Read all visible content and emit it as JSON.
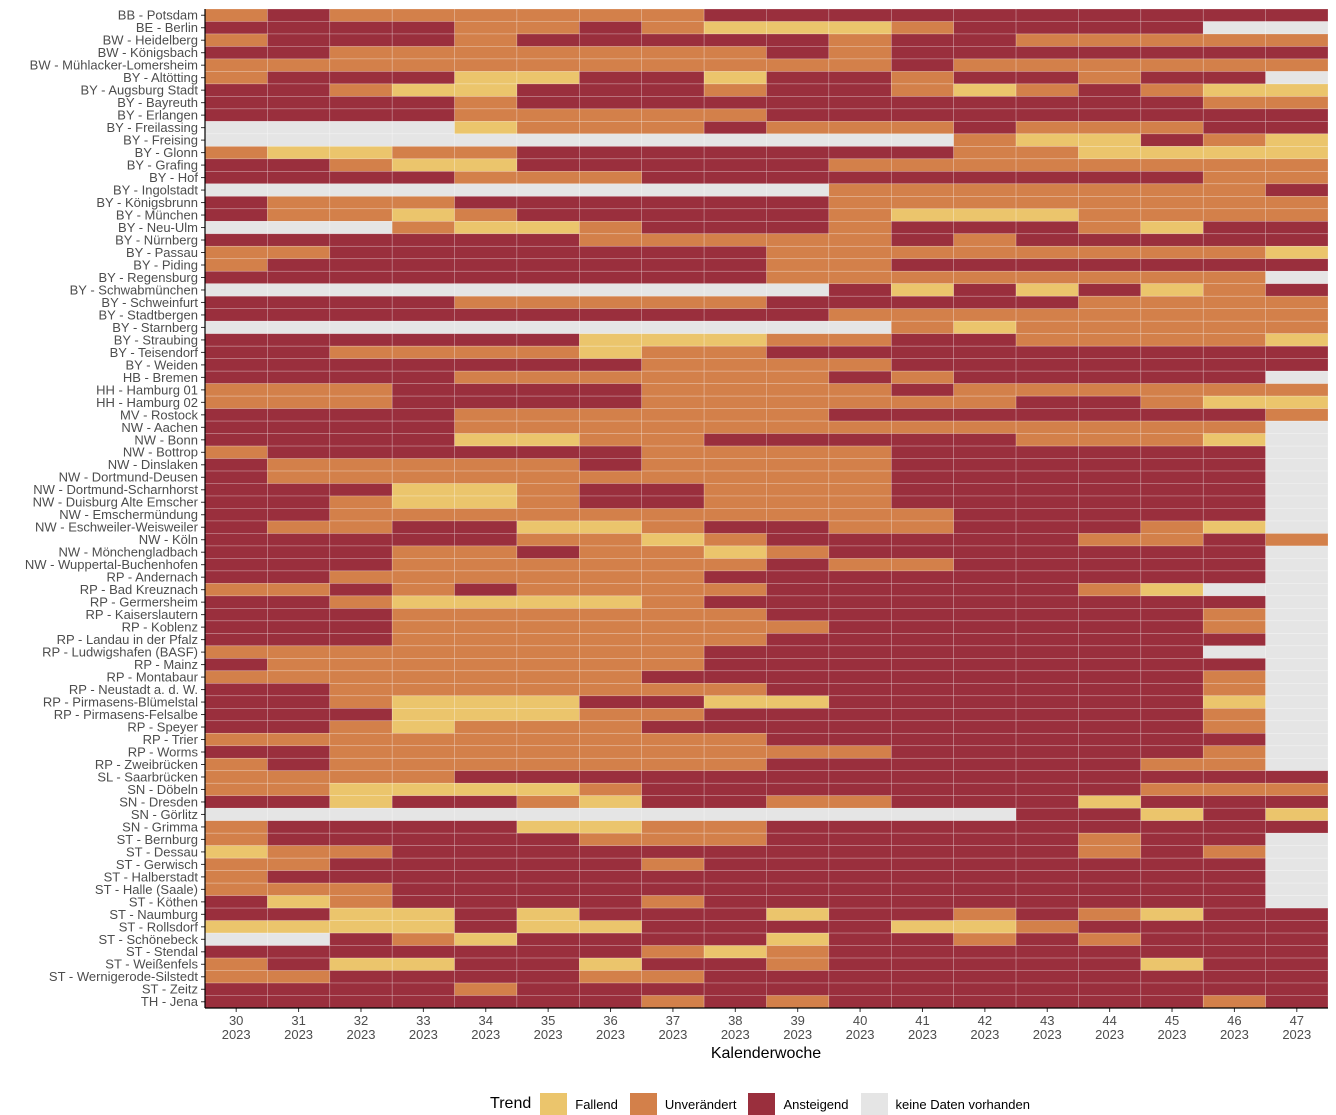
{
  "chart_data": {
    "type": "heatmap",
    "x_label": "Kalenderwoche",
    "categories": [
      "30\n2023",
      "31\n2023",
      "32\n2023",
      "33\n2023",
      "34\n2023",
      "35\n2023",
      "36\n2023",
      "37\n2023",
      "38\n2023",
      "39\n2023",
      "40\n2023",
      "41\n2023",
      "42\n2023",
      "43\n2023",
      "44\n2023",
      "45\n2023",
      "46\n2023",
      "47\n2023"
    ],
    "rows": [
      "BB - Potsdam",
      "BE - Berlin",
      "BW - Heidelberg",
      "BW - Königsbach",
      "BW - Mühlacker-Lomersheim",
      "BY - Altötting",
      "BY - Augsburg Stadt",
      "BY - Bayreuth",
      "BY - Erlangen",
      "BY - Freilassing",
      "BY - Freising",
      "BY - Glonn",
      "BY - Grafing",
      "BY - Hof",
      "BY - Ingolstadt",
      "BY - Königsbrunn",
      "BY - München",
      "BY - Neu-Ulm",
      "BY - Nürnberg",
      "BY - Passau",
      "BY - Piding",
      "BY - Regensburg",
      "BY - Schwabmünchen",
      "BY - Schweinfurt",
      "BY - Stadtbergen",
      "BY - Starnberg",
      "BY - Straubing",
      "BY - Teisendorf",
      "BY - Weiden",
      "HB - Bremen",
      "HH - Hamburg 01",
      "HH - Hamburg 02",
      "MV - Rostock",
      "NW - Aachen",
      "NW - Bonn",
      "NW - Bottrop",
      "NW - Dinslaken",
      "NW - Dortmund-Deusen",
      "NW - Dortmund-Scharnhorst",
      "NW - Duisburg Alte Emscher",
      "NW - Emschermündung",
      "NW - Eschweiler-Weisweiler",
      "NW - Köln",
      "NW - Mönchengladbach",
      "NW - Wuppertal-Buchenhofen",
      "RP - Andernach",
      "RP - Bad Kreuznach",
      "RP - Germersheim",
      "RP - Kaiserslautern",
      "RP - Koblenz",
      "RP - Landau in der Pfalz",
      "RP - Ludwigshafen (BASF)",
      "RP - Mainz",
      "RP - Montabaur",
      "RP - Neustadt a. d. W.",
      "RP - Pirmasens-Blümelstal",
      "RP - Pirmasens-Felsalbe",
      "RP - Speyer",
      "RP - Trier",
      "RP - Worms",
      "RP - Zweibrücken",
      "SL - Saarbrücken",
      "SN - Döbeln",
      "SN - Dresden",
      "SN - Görlitz",
      "SN - Grimma",
      "ST - Bernburg",
      "ST - Dessau",
      "ST - Gerwisch",
      "ST - Halberstadt",
      "ST - Halle (Saale)",
      "ST - Köthen",
      "ST - Naumburg",
      "ST - Rollsdorf",
      "ST - Schönebeck",
      "ST - Stendal",
      "ST - Weißenfels",
      "ST - Wernigerode-Silstedt",
      "ST - Zeitz",
      "TH - Jena"
    ],
    "legend": {
      "title": "Trend",
      "items": [
        {
          "name": "Fallend",
          "color": "#ebc56c"
        },
        {
          "name": "Unverändert",
          "color": "#d3804a"
        },
        {
          "name": "Ansteigend",
          "color": "#9a2f3d"
        },
        {
          "name": "keine Daten vorhanden",
          "color": "#e5e5e5"
        }
      ]
    },
    "values": [
      [
        1,
        2,
        1,
        1,
        1,
        1,
        1,
        1,
        2,
        2,
        2,
        2,
        2,
        2,
        2,
        2,
        2,
        2
      ],
      [
        2,
        2,
        2,
        2,
        1,
        1,
        2,
        1,
        0,
        0,
        0,
        1,
        2,
        2,
        2,
        2,
        3,
        3
      ],
      [
        1,
        2,
        2,
        2,
        1,
        2,
        2,
        2,
        2,
        2,
        1,
        2,
        2,
        1,
        1,
        1,
        1,
        1
      ],
      [
        2,
        2,
        1,
        1,
        1,
        1,
        1,
        1,
        1,
        2,
        1,
        2,
        2,
        2,
        2,
        2,
        2,
        2
      ],
      [
        1,
        1,
        1,
        1,
        1,
        1,
        1,
        1,
        1,
        1,
        1,
        2,
        1,
        1,
        1,
        1,
        1,
        1
      ],
      [
        1,
        2,
        2,
        2,
        0,
        0,
        2,
        2,
        0,
        2,
        2,
        1,
        2,
        2,
        1,
        2,
        2,
        3
      ],
      [
        2,
        2,
        1,
        0,
        0,
        2,
        2,
        2,
        1,
        2,
        2,
        1,
        0,
        1,
        2,
        1,
        0,
        0
      ],
      [
        2,
        2,
        2,
        2,
        1,
        2,
        2,
        2,
        2,
        2,
        2,
        2,
        2,
        2,
        2,
        2,
        1,
        1
      ],
      [
        2,
        2,
        2,
        2,
        1,
        1,
        1,
        1,
        1,
        2,
        2,
        2,
        2,
        2,
        2,
        2,
        2,
        2
      ],
      [
        3,
        3,
        3,
        3,
        0,
        1,
        1,
        1,
        2,
        1,
        1,
        1,
        2,
        1,
        1,
        1,
        2,
        2
      ],
      [
        3,
        3,
        3,
        3,
        3,
        3,
        3,
        3,
        3,
        3,
        3,
        3,
        1,
        0,
        0,
        2,
        1,
        0
      ],
      [
        1,
        0,
        0,
        1,
        1,
        2,
        2,
        2,
        2,
        2,
        2,
        2,
        1,
        1,
        0,
        0,
        0,
        0
      ],
      [
        2,
        2,
        1,
        0,
        0,
        2,
        2,
        2,
        2,
        2,
        1,
        1,
        1,
        1,
        1,
        1,
        1,
        1
      ],
      [
        2,
        2,
        2,
        2,
        1,
        1,
        1,
        2,
        2,
        2,
        2,
        2,
        2,
        2,
        2,
        2,
        1,
        1
      ],
      [
        3,
        3,
        3,
        3,
        3,
        3,
        3,
        3,
        3,
        3,
        1,
        1,
        1,
        1,
        1,
        1,
        1,
        2
      ],
      [
        2,
        1,
        1,
        1,
        2,
        2,
        2,
        2,
        2,
        2,
        1,
        1,
        1,
        1,
        1,
        1,
        1,
        1
      ],
      [
        2,
        1,
        1,
        0,
        1,
        2,
        2,
        2,
        2,
        2,
        1,
        0,
        0,
        0,
        1,
        1,
        1,
        1
      ],
      [
        3,
        3,
        3,
        1,
        0,
        0,
        1,
        2,
        2,
        2,
        1,
        2,
        2,
        2,
        1,
        0,
        2,
        2
      ],
      [
        2,
        2,
        2,
        2,
        2,
        2,
        1,
        1,
        1,
        1,
        1,
        2,
        1,
        2,
        2,
        2,
        2,
        2
      ],
      [
        1,
        1,
        2,
        2,
        2,
        2,
        2,
        2,
        2,
        1,
        1,
        1,
        1,
        1,
        1,
        1,
        1,
        0
      ],
      [
        1,
        2,
        2,
        2,
        2,
        2,
        2,
        2,
        2,
        1,
        1,
        2,
        2,
        2,
        2,
        2,
        2,
        2
      ],
      [
        2,
        2,
        2,
        2,
        2,
        2,
        2,
        2,
        2,
        1,
        1,
        1,
        1,
        1,
        1,
        1,
        1,
        3
      ],
      [
        3,
        3,
        3,
        3,
        3,
        3,
        3,
        3,
        3,
        3,
        2,
        0,
        2,
        0,
        2,
        0,
        1,
        2
      ],
      [
        2,
        2,
        2,
        2,
        1,
        1,
        1,
        1,
        1,
        2,
        2,
        2,
        2,
        2,
        1,
        1,
        1,
        1
      ],
      [
        2,
        2,
        2,
        2,
        2,
        2,
        2,
        2,
        2,
        2,
        1,
        1,
        1,
        1,
        1,
        1,
        1,
        1
      ],
      [
        3,
        3,
        3,
        3,
        3,
        3,
        3,
        3,
        3,
        3,
        3,
        1,
        0,
        1,
        1,
        1,
        1,
        1
      ],
      [
        2,
        2,
        2,
        2,
        2,
        2,
        0,
        0,
        0,
        1,
        1,
        2,
        2,
        1,
        1,
        1,
        1,
        0
      ],
      [
        2,
        2,
        1,
        1,
        1,
        1,
        0,
        1,
        1,
        2,
        2,
        2,
        2,
        2,
        2,
        2,
        2,
        2
      ],
      [
        2,
        2,
        2,
        2,
        2,
        2,
        2,
        1,
        1,
        1,
        1,
        2,
        2,
        2,
        2,
        2,
        2,
        2
      ],
      [
        2,
        2,
        2,
        2,
        1,
        1,
        1,
        1,
        1,
        1,
        2,
        1,
        2,
        2,
        2,
        2,
        2,
        3
      ],
      [
        1,
        1,
        1,
        2,
        2,
        2,
        2,
        1,
        1,
        1,
        1,
        2,
        1,
        1,
        1,
        1,
        1,
        1
      ],
      [
        1,
        1,
        1,
        2,
        2,
        2,
        2,
        1,
        1,
        1,
        1,
        1,
        1,
        2,
        2,
        1,
        0,
        0
      ],
      [
        2,
        2,
        2,
        2,
        1,
        1,
        1,
        1,
        1,
        1,
        2,
        2,
        2,
        2,
        2,
        2,
        2,
        1
      ],
      [
        2,
        2,
        2,
        2,
        1,
        1,
        1,
        1,
        1,
        1,
        1,
        1,
        1,
        1,
        1,
        1,
        1,
        3
      ],
      [
        2,
        2,
        2,
        2,
        0,
        0,
        1,
        1,
        2,
        2,
        2,
        2,
        2,
        1,
        1,
        1,
        0,
        3
      ],
      [
        1,
        2,
        2,
        2,
        2,
        2,
        2,
        1,
        1,
        1,
        1,
        2,
        2,
        2,
        2,
        2,
        2,
        3
      ],
      [
        2,
        1,
        1,
        1,
        1,
        1,
        2,
        1,
        1,
        1,
        1,
        2,
        2,
        2,
        2,
        2,
        2,
        3
      ],
      [
        2,
        1,
        1,
        1,
        1,
        1,
        1,
        1,
        1,
        1,
        1,
        2,
        2,
        2,
        2,
        2,
        2,
        3
      ],
      [
        2,
        2,
        2,
        0,
        0,
        1,
        2,
        2,
        1,
        1,
        1,
        2,
        2,
        2,
        2,
        2,
        2,
        3
      ],
      [
        2,
        2,
        1,
        0,
        0,
        1,
        2,
        2,
        1,
        1,
        1,
        2,
        2,
        2,
        2,
        2,
        2,
        3
      ],
      [
        2,
        2,
        1,
        1,
        1,
        1,
        1,
        1,
        1,
        1,
        1,
        1,
        2,
        2,
        2,
        2,
        2,
        3
      ],
      [
        2,
        1,
        1,
        2,
        2,
        0,
        0,
        1,
        2,
        2,
        1,
        1,
        2,
        2,
        2,
        1,
        0,
        3
      ],
      [
        2,
        2,
        2,
        2,
        2,
        1,
        1,
        0,
        1,
        2,
        2,
        2,
        2,
        2,
        1,
        1,
        2,
        1
      ],
      [
        2,
        2,
        2,
        1,
        1,
        2,
        1,
        1,
        0,
        1,
        2,
        2,
        2,
        2,
        2,
        2,
        2,
        3
      ],
      [
        2,
        2,
        2,
        1,
        1,
        1,
        1,
        1,
        1,
        2,
        1,
        1,
        2,
        2,
        2,
        2,
        2,
        3
      ],
      [
        2,
        2,
        1,
        1,
        1,
        1,
        1,
        1,
        2,
        2,
        2,
        2,
        2,
        2,
        2,
        2,
        2,
        3
      ],
      [
        1,
        1,
        2,
        1,
        2,
        1,
        1,
        1,
        1,
        2,
        2,
        2,
        2,
        2,
        1,
        0,
        3,
        3
      ],
      [
        2,
        2,
        1,
        0,
        0,
        0,
        0,
        1,
        2,
        2,
        2,
        2,
        2,
        2,
        2,
        2,
        2,
        3
      ],
      [
        2,
        2,
        2,
        1,
        1,
        1,
        1,
        1,
        1,
        2,
        2,
        2,
        2,
        2,
        2,
        2,
        1,
        3
      ],
      [
        2,
        2,
        2,
        1,
        1,
        1,
        1,
        1,
        1,
        1,
        2,
        2,
        2,
        2,
        2,
        2,
        1,
        3
      ],
      [
        2,
        2,
        2,
        1,
        1,
        1,
        1,
        1,
        1,
        2,
        2,
        2,
        2,
        2,
        2,
        2,
        2,
        3
      ],
      [
        1,
        1,
        1,
        1,
        1,
        1,
        1,
        1,
        2,
        2,
        2,
        2,
        2,
        2,
        2,
        2,
        3,
        3
      ],
      [
        2,
        1,
        1,
        1,
        1,
        1,
        1,
        1,
        2,
        2,
        2,
        2,
        2,
        2,
        2,
        2,
        2,
        3
      ],
      [
        1,
        1,
        1,
        1,
        1,
        1,
        1,
        2,
        2,
        2,
        2,
        2,
        2,
        2,
        2,
        2,
        1,
        3
      ],
      [
        2,
        2,
        1,
        1,
        1,
        1,
        1,
        1,
        1,
        2,
        2,
        2,
        2,
        2,
        2,
        2,
        1,
        3
      ],
      [
        2,
        2,
        1,
        0,
        0,
        0,
        2,
        2,
        0,
        0,
        2,
        2,
        2,
        2,
        2,
        2,
        0,
        3
      ],
      [
        2,
        2,
        2,
        0,
        0,
        0,
        1,
        1,
        2,
        2,
        2,
        2,
        2,
        2,
        2,
        2,
        1,
        3
      ],
      [
        2,
        2,
        1,
        0,
        1,
        1,
        1,
        2,
        2,
        2,
        2,
        2,
        2,
        2,
        2,
        2,
        1,
        3
      ],
      [
        1,
        1,
        1,
        1,
        1,
        1,
        1,
        1,
        1,
        2,
        2,
        2,
        2,
        2,
        2,
        2,
        2,
        3
      ],
      [
        2,
        2,
        1,
        1,
        1,
        1,
        1,
        1,
        1,
        1,
        1,
        2,
        2,
        2,
        2,
        2,
        1,
        3
      ],
      [
        1,
        2,
        1,
        1,
        1,
        1,
        1,
        1,
        1,
        2,
        2,
        2,
        2,
        2,
        2,
        1,
        1,
        3
      ],
      [
        1,
        1,
        1,
        1,
        2,
        2,
        2,
        2,
        2,
        2,
        2,
        2,
        2,
        2,
        2,
        2,
        2,
        2
      ],
      [
        1,
        1,
        0,
        0,
        0,
        0,
        1,
        2,
        2,
        2,
        2,
        2,
        2,
        2,
        2,
        1,
        1,
        1
      ],
      [
        2,
        2,
        0,
        2,
        2,
        1,
        0,
        2,
        2,
        1,
        1,
        2,
        2,
        2,
        0,
        2,
        2,
        2
      ],
      [
        3,
        3,
        3,
        3,
        3,
        3,
        3,
        3,
        3,
        3,
        3,
        3,
        3,
        2,
        2,
        0,
        2,
        0
      ],
      [
        1,
        2,
        2,
        2,
        2,
        0,
        0,
        1,
        1,
        2,
        2,
        2,
        2,
        2,
        2,
        2,
        2,
        2
      ],
      [
        1,
        2,
        2,
        2,
        2,
        2,
        1,
        1,
        1,
        2,
        2,
        2,
        2,
        2,
        1,
        2,
        2,
        3
      ],
      [
        0,
        1,
        1,
        2,
        2,
        2,
        2,
        2,
        2,
        2,
        2,
        2,
        2,
        2,
        1,
        2,
        1,
        3
      ],
      [
        1,
        1,
        2,
        2,
        2,
        2,
        2,
        1,
        2,
        2,
        2,
        2,
        2,
        2,
        2,
        2,
        2,
        3
      ],
      [
        1,
        2,
        2,
        2,
        2,
        2,
        2,
        2,
        2,
        2,
        2,
        2,
        2,
        2,
        2,
        2,
        2,
        3
      ],
      [
        1,
        1,
        1,
        2,
        2,
        2,
        2,
        2,
        2,
        2,
        2,
        2,
        2,
        2,
        2,
        2,
        2,
        3
      ],
      [
        2,
        0,
        1,
        2,
        2,
        2,
        2,
        1,
        2,
        2,
        2,
        2,
        2,
        2,
        2,
        2,
        2,
        3
      ],
      [
        2,
        2,
        0,
        0,
        2,
        0,
        2,
        2,
        2,
        0,
        2,
        2,
        1,
        2,
        1,
        0,
        2,
        2
      ],
      [
        0,
        0,
        0,
        0,
        2,
        0,
        0,
        2,
        2,
        2,
        2,
        0,
        0,
        1,
        2,
        2,
        2,
        2
      ],
      [
        3,
        3,
        2,
        1,
        0,
        2,
        2,
        2,
        2,
        0,
        2,
        2,
        1,
        2,
        1,
        2,
        2,
        2
      ],
      [
        2,
        2,
        2,
        2,
        2,
        2,
        2,
        1,
        0,
        1,
        2,
        2,
        2,
        2,
        2,
        2,
        2,
        2
      ],
      [
        1,
        2,
        0,
        0,
        2,
        2,
        0,
        2,
        2,
        1,
        2,
        2,
        2,
        2,
        2,
        0,
        2,
        2
      ],
      [
        1,
        1,
        2,
        2,
        2,
        2,
        1,
        1,
        2,
        2,
        2,
        2,
        2,
        2,
        2,
        2,
        2,
        2
      ],
      [
        2,
        2,
        2,
        2,
        1,
        2,
        2,
        2,
        2,
        2,
        2,
        2,
        2,
        2,
        2,
        2,
        2,
        2
      ],
      [
        2,
        2,
        2,
        2,
        2,
        2,
        2,
        1,
        2,
        1,
        2,
        2,
        2,
        2,
        2,
        2,
        1,
        2
      ]
    ]
  }
}
